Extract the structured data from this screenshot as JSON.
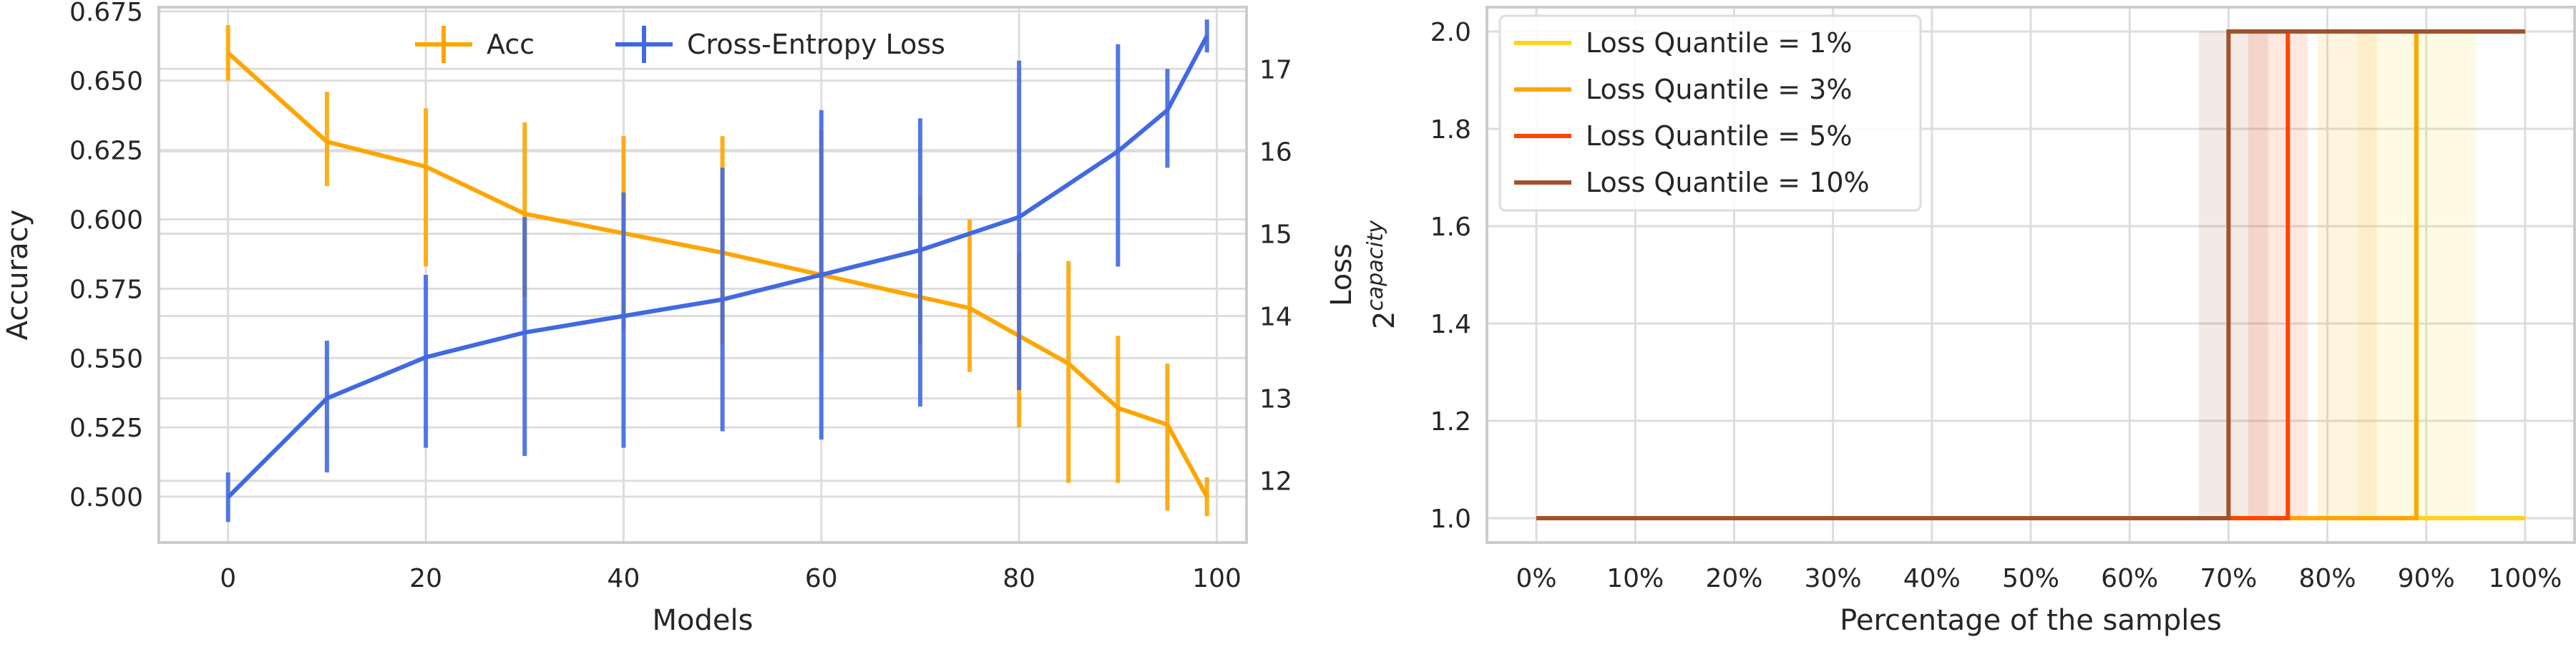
{
  "chart_data": [
    {
      "type": "line",
      "xlabel": "Models",
      "ylabel_left": "Accuracy",
      "ylabel_right": "Loss",
      "xlim": [
        -7,
        103
      ],
      "ylim_left": [
        0.4835,
        0.6765
      ],
      "ylim_right": [
        11.25,
        17.75
      ],
      "xticks": [
        0,
        20,
        40,
        60,
        80,
        100
      ],
      "xtick_labels": [
        "0",
        "20",
        "40",
        "60",
        "80",
        "100"
      ],
      "yticks_left": [
        0.5,
        0.525,
        0.55,
        0.575,
        0.6,
        0.625,
        0.65,
        0.675
      ],
      "ytick_labels_left": [
        "0.500",
        "0.525",
        "0.550",
        "0.575",
        "0.600",
        "0.625",
        "0.650",
        "0.675"
      ],
      "yticks_right": [
        12,
        13,
        14,
        15,
        16,
        17
      ],
      "ytick_labels_right": [
        "12",
        "13",
        "14",
        "15",
        "16",
        "17"
      ],
      "grid": true,
      "legend_position": "top-center",
      "series": [
        {
          "name": "Acc",
          "axis": "left",
          "color": "#ffa500",
          "x": [
            0,
            10,
            20,
            30,
            40,
            50,
            60,
            70,
            75,
            80,
            85,
            90,
            95,
            99
          ],
          "y": [
            0.66,
            0.628,
            0.619,
            0.602,
            0.595,
            0.588,
            0.58,
            0.572,
            0.568,
            0.558,
            0.548,
            0.532,
            0.526,
            0.5
          ],
          "error_low": [
            0.65,
            0.612,
            0.583,
            0.572,
            0.56,
            0.555,
            0.552,
            0.555,
            0.545,
            0.525,
            0.505,
            0.505,
            0.495,
            0.493
          ],
          "error_high": [
            0.67,
            0.646,
            0.64,
            0.635,
            0.63,
            0.63,
            0.632,
            0.608,
            0.6,
            0.588,
            0.585,
            0.558,
            0.548,
            0.507
          ]
        },
        {
          "name": "Cross-Entropy Loss",
          "axis": "right",
          "color": "#4169e1",
          "x": [
            0,
            10,
            20,
            30,
            40,
            50,
            60,
            70,
            80,
            90,
            95,
            99
          ],
          "y": [
            11.8,
            13.0,
            13.5,
            13.8,
            14.0,
            14.2,
            14.5,
            14.8,
            15.2,
            16.0,
            16.5,
            17.4
          ],
          "error_low": [
            11.5,
            12.1,
            12.4,
            12.3,
            12.4,
            12.6,
            12.5,
            12.9,
            13.1,
            14.6,
            15.8,
            17.2
          ],
          "error_high": [
            12.1,
            13.7,
            14.5,
            15.2,
            15.5,
            15.8,
            16.5,
            16.4,
            17.1,
            17.3,
            17.0,
            17.6
          ]
        }
      ]
    },
    {
      "type": "line",
      "xlabel": "Percentage of the samples",
      "ylabel": "2^capacity",
      "ylabel_base": "2",
      "ylabel_exp": "capacity",
      "xlim": [
        -5,
        105
      ],
      "ylim": [
        0.95,
        2.05
      ],
      "xticks": [
        0,
        10,
        20,
        30,
        40,
        50,
        60,
        70,
        80,
        90,
        100
      ],
      "xtick_labels": [
        "0%",
        "10%",
        "20%",
        "30%",
        "40%",
        "50%",
        "60%",
        "70%",
        "80%",
        "90%",
        "100%"
      ],
      "yticks": [
        1.0,
        1.2,
        1.4,
        1.6,
        1.8,
        2.0
      ],
      "ytick_labels": [
        "1.0",
        "1.2",
        "1.4",
        "1.6",
        "1.8",
        "2.0"
      ],
      "grid": true,
      "legend_position": "top-left",
      "series": [
        {
          "name": "Loss Quantile = 1%",
          "color": "#ffd21f",
          "step_at": 89,
          "low": 1.0,
          "high": 2.0,
          "x_end": 100,
          "final": 1.0,
          "band": [
            83,
            95
          ]
        },
        {
          "name": "Loss Quantile = 3%",
          "color": "#ffa500",
          "step_at": 89,
          "low": 1.0,
          "high": 2.0,
          "x_end": 100,
          "final": 2.0,
          "band": [
            79,
            85
          ]
        },
        {
          "name": "Loss Quantile = 5%",
          "color": "#ff4500",
          "step_at": 76,
          "low": 1.0,
          "high": 2.0,
          "x_end": 100,
          "final": 2.0,
          "band": [
            72,
            78
          ]
        },
        {
          "name": "Loss Quantile = 10%",
          "color": "#a0522d",
          "step_at": 70,
          "low": 1.0,
          "high": 2.0,
          "x_end": 100,
          "final": 2.0,
          "band": [
            67,
            74
          ]
        }
      ]
    }
  ]
}
